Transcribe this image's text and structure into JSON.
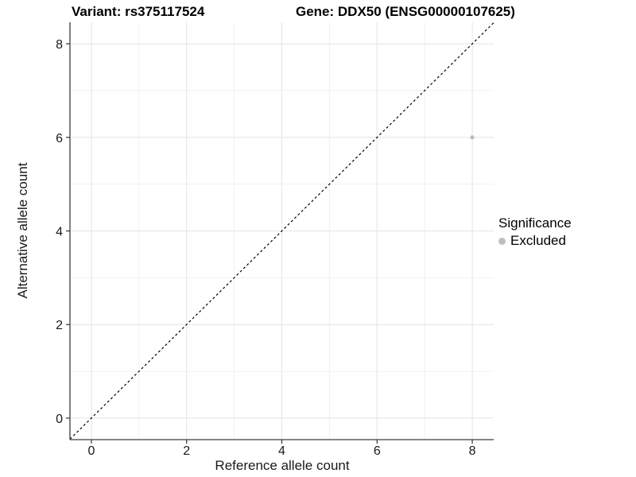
{
  "chart_data": {
    "type": "scatter",
    "title_left": "Variant: rs375117524",
    "title_right": "Gene: DDX50 (ENSG00000107625)",
    "xlabel": "Reference allele count",
    "ylabel": "Alternative allele count",
    "x_ticks": [
      0,
      2,
      4,
      6,
      8
    ],
    "y_ticks": [
      0,
      2,
      4,
      6,
      8
    ],
    "x_minor_ticks": [
      1,
      3,
      5,
      7
    ],
    "y_minor_ticks": [
      1,
      3,
      5,
      7
    ],
    "xlim": [
      -0.45,
      8.45
    ],
    "ylim": [
      -0.46,
      8.46
    ],
    "grid": "major+minor",
    "points": [
      {
        "x": 8,
        "y": 6,
        "series": "Excluded"
      }
    ],
    "reference_line": {
      "type": "identity y=x",
      "style": "dashed",
      "color": "#000000"
    },
    "legend": {
      "title": "Significance",
      "position": "right",
      "items": [
        {
          "label": "Excluded",
          "color": "#bebebe"
        }
      ]
    },
    "colors": {
      "point": "#bebebe",
      "grid_major": "#e4e4e4",
      "grid_minor": "#f1f1f1",
      "axis_line": "#3c3c3c",
      "tick_mark": "#333333",
      "background": "#ffffff"
    }
  }
}
